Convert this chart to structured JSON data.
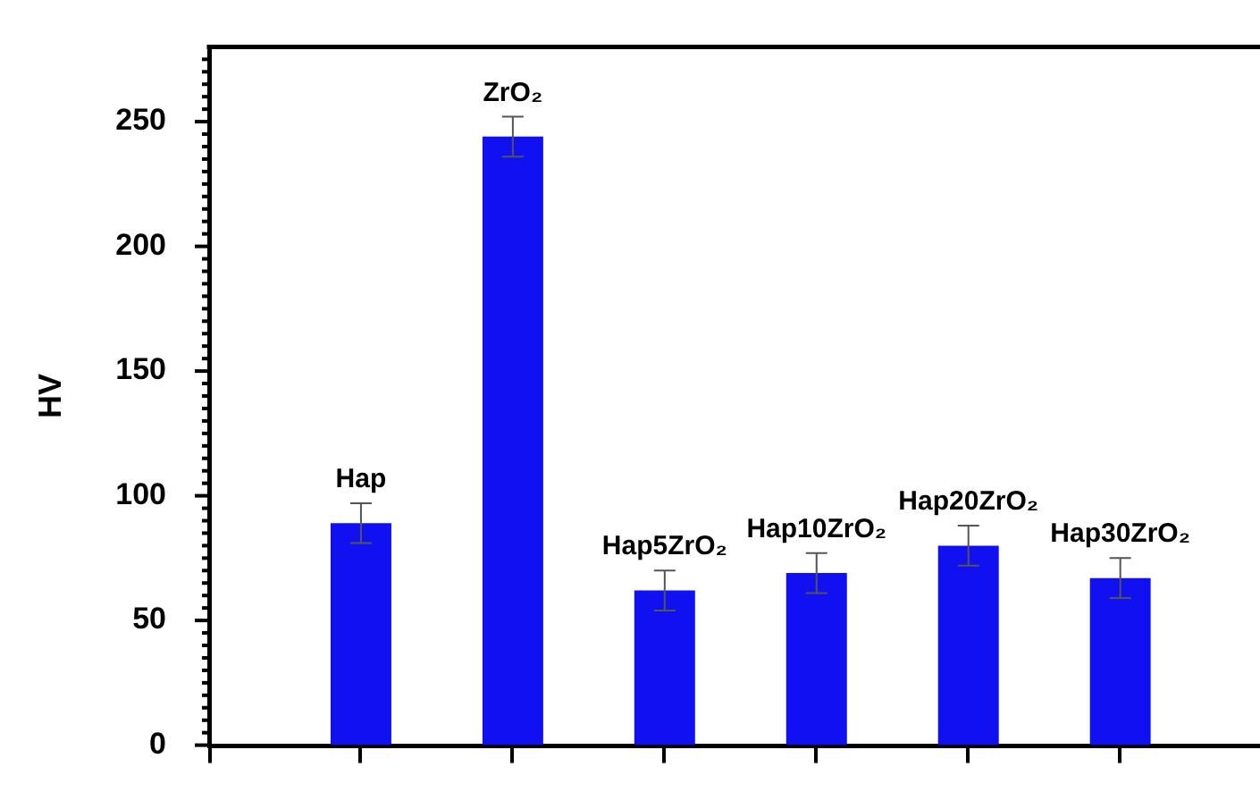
{
  "chart_data": {
    "type": "bar",
    "ylabel": "HV",
    "categories": [
      "Hap",
      "ZrO₂",
      "Hap5ZrO₂",
      "Hap10ZrO₂",
      "Hap20ZrO₂",
      "Hap30ZrO₂"
    ],
    "values": [
      89,
      244,
      62,
      69,
      80,
      67
    ],
    "errors": [
      8,
      8,
      8,
      8,
      8,
      8
    ],
    "color": "#1010f0",
    "ylim": [
      0,
      280
    ],
    "yticks": [
      0,
      {
        "value": 5,
        "label": null
      },
      {
        "value": 10,
        "label": null
      },
      {
        "value": 15,
        "label": null
      },
      {
        "value": 20,
        "label": null
      },
      {
        "value": 25,
        "label": null
      },
      {
        "value": 30,
        "label": null
      },
      {
        "value": 35,
        "label": null
      },
      {
        "value": 40,
        "label": null
      },
      {
        "value": 45,
        "label": null
      },
      50,
      {
        "value": 55,
        "label": null
      },
      {
        "value": 60,
        "label": null
      },
      {
        "value": 65,
        "label": null
      },
      {
        "value": 70,
        "label": null
      },
      {
        "value": 75,
        "label": null
      },
      {
        "value": 80,
        "label": null
      },
      {
        "value": 85,
        "label": null
      },
      {
        "value": 90,
        "label": null
      },
      {
        "value": 95,
        "label": null
      },
      100,
      {
        "value": 105,
        "label": null
      },
      {
        "value": 110,
        "label": null
      },
      {
        "value": 115,
        "label": null
      },
      {
        "value": 120,
        "label": null
      },
      {
        "value": 125,
        "label": null
      },
      {
        "value": 130,
        "label": null
      },
      {
        "value": 135,
        "label": null
      },
      {
        "value": 140,
        "label": null
      },
      {
        "value": 145,
        "label": null
      },
      150,
      {
        "value": 155,
        "label": null
      },
      {
        "value": 160,
        "label": null
      },
      {
        "value": 165,
        "label": null
      },
      {
        "value": 170,
        "label": null
      },
      {
        "value": 175,
        "label": null
      },
      {
        "value": 180,
        "label": null
      },
      {
        "value": 185,
        "label": null
      },
      {
        "value": 190,
        "label": null
      },
      {
        "value": 195,
        "label": null
      },
      200,
      {
        "value": 205,
        "label": null
      },
      {
        "value": 210,
        "label": null
      },
      {
        "value": 215,
        "label": null
      },
      {
        "value": 220,
        "label": null
      },
      {
        "value": 225,
        "label": null
      },
      {
        "value": 230,
        "label": null
      },
      {
        "value": 235,
        "label": null
      },
      {
        "value": 240,
        "label": null
      },
      {
        "value": 245,
        "label": null
      },
      250,
      {
        "value": 255,
        "label": null
      },
      {
        "value": 260,
        "label": null
      },
      {
        "value": 265,
        "label": null
      },
      {
        "value": 270,
        "label": null
      },
      {
        "value": 275,
        "label": null
      }
    ]
  }
}
